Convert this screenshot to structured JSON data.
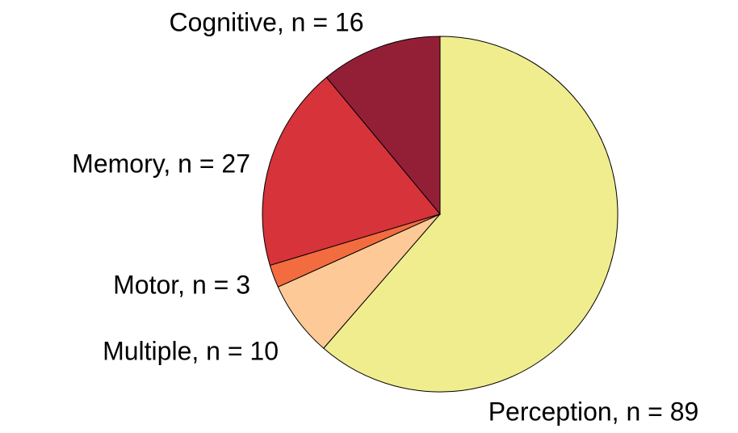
{
  "chart_data": {
    "type": "pie",
    "values": [
      89,
      10,
      3,
      27,
      16
    ],
    "value_labels": [
      "Perception, n = 89",
      "Multiple, n = 10",
      "Motor, n = 3",
      "Memory, n = 27",
      "Cognitive, n = 16"
    ],
    "colors": [
      "#f0ed8f",
      "#fdc997",
      "#f26c3f",
      "#d7333a",
      "#931f37"
    ],
    "start": "top",
    "direction": "clockwise"
  }
}
